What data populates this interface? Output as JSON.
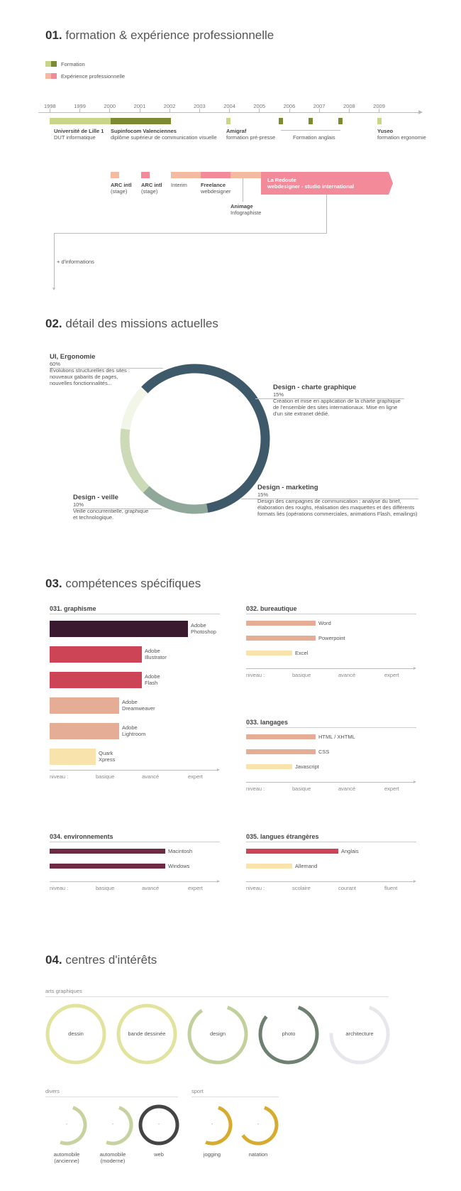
{
  "s1": {
    "num": "01.",
    "title": "formation & expérience professionnelle",
    "legend": [
      {
        "label": "Formation",
        "colors": [
          "#c9d68a",
          "#7d8a32"
        ]
      },
      {
        "label": "Expérience professionnelle",
        "colors": [
          "#f5bba0",
          "#f28a9a"
        ]
      }
    ],
    "years": [
      "1998",
      "1999",
      "2000",
      "2001",
      "2002",
      "2003",
      "2004",
      "2005",
      "2006",
      "2007",
      "2008",
      "2009"
    ],
    "edu": [
      {
        "title": "Université de Lille 1",
        "desc": "DUT informatique"
      },
      {
        "title": "Supinfocom Valenciennes",
        "desc": "diplôme supérieur de communication visuelle"
      },
      {
        "title": "Amigraf",
        "desc": "formation pré-presse"
      },
      {
        "title": "",
        "desc": "Formation anglais"
      },
      {
        "title": "Yuseo",
        "desc": "formation ergonomie"
      }
    ],
    "exp": [
      {
        "title": "ARC intl",
        "desc": "(stage)"
      },
      {
        "title": "ARC intl",
        "desc": "(stage)"
      },
      {
        "title": "",
        "desc": "Interim"
      },
      {
        "title": "Freelance",
        "desc": "webdesigner"
      },
      {
        "title": "Animage",
        "desc": "Infographiste"
      }
    ],
    "current": {
      "line1": "La Redoute",
      "line2": "webdesigner - studio international"
    },
    "more": "+ d'informations"
  },
  "s2": {
    "num": "02.",
    "title": "détail des missions actuelles",
    "chart_data": {
      "type": "pie",
      "labels": [
        "UI, Ergonomie",
        "Design - charte graphique",
        "Design - marketing",
        "Design - veille"
      ],
      "values": [
        60,
        15,
        15,
        10
      ],
      "colors": [
        "#3e5a6a",
        "#8fa89a",
        "#ccdab8",
        "#f2f6e8"
      ]
    },
    "items": [
      {
        "title": "UI, Ergonomie",
        "pct": "60%",
        "desc": [
          "Évolutions structurelles des sites :",
          "nouveaux gabarits de pages,",
          "nouvelles fonctionnalités..."
        ]
      },
      {
        "title": "Design - charte graphique",
        "pct": "15%",
        "desc": [
          "Création et mise en application de la charte graphique",
          "de l'ensemble des sites internationaux. Mise en ligne",
          "d'un site extranet dédié."
        ]
      },
      {
        "title": "Design - marketing",
        "pct": "15%",
        "desc": [
          "Design des campagnes de communication : analyse du brief,",
          "élaboration des roughs, réalisation des maquettes et des différents",
          "formats liés (opérations commerciales, animations Flash, emailings)"
        ]
      },
      {
        "title": "Design - veille",
        "pct": "10%",
        "desc": [
          "Veille concurrentielle, graphique",
          "et technologique."
        ]
      }
    ]
  },
  "s3": {
    "num": "03.",
    "title": "compétences spécifiques",
    "levels": [
      "niveau :",
      "basique",
      "avancé",
      "expert"
    ],
    "levels_lang": [
      "niveau :",
      "scolaire",
      "courant",
      "fluent"
    ],
    "graphisme": {
      "title": "031. graphisme",
      "skills": [
        {
          "label": [
            "Adobe",
            "Photoshop"
          ],
          "level": 3,
          "color": "#3a1a2e"
        },
        {
          "label": [
            "Adobe",
            "Illustrator"
          ],
          "level": 2,
          "color": "#cc4455"
        },
        {
          "label": [
            "Adobe",
            "Flash"
          ],
          "level": 2,
          "color": "#cc4455"
        },
        {
          "label": [
            "Adobe",
            "Dreamweaver"
          ],
          "level": 1.5,
          "color": "#e6ad96"
        },
        {
          "label": [
            "Adobe",
            "Lightroom"
          ],
          "level": 1.5,
          "color": "#e6ad96"
        },
        {
          "label": [
            "Quark",
            "Xpress"
          ],
          "level": 1,
          "color": "#f8e3ac"
        }
      ]
    },
    "bureautique": {
      "title": "032. bureautique",
      "skills": [
        {
          "label": "Word",
          "level": 1.5,
          "color": "#e6ad96"
        },
        {
          "label": "Powerpoint",
          "level": 1.5,
          "color": "#e6ad96"
        },
        {
          "label": "Excel",
          "level": 1,
          "color": "#f8e3ac"
        }
      ]
    },
    "langages": {
      "title": "033. langages",
      "skills": [
        {
          "label": "HTML / XHTML",
          "level": 1.5,
          "color": "#e6ad96"
        },
        {
          "label": "CSS",
          "level": 1.5,
          "color": "#e6ad96"
        },
        {
          "label": "Javascript",
          "level": 1,
          "color": "#f8e3ac"
        }
      ]
    },
    "environnements": {
      "title": "034. environnements",
      "skills": [
        {
          "label": "Macintosh",
          "level": 2.5,
          "color": "#6e2a44"
        },
        {
          "label": "Windows",
          "level": 2.5,
          "color": "#6e2a44"
        }
      ]
    },
    "langues": {
      "title": "035. langues étrangères",
      "skills": [
        {
          "label": "Anglais",
          "level": 2,
          "color": "#cc4455"
        },
        {
          "label": "Allemand",
          "level": 1,
          "color": "#f8e3ac"
        }
      ]
    }
  },
  "s4": {
    "num": "04.",
    "title": "centres d'intérêts",
    "arts_label": "arts graphiques",
    "arts": [
      {
        "label": "dessin",
        "level": 1.0,
        "color": "#e3e3a0"
      },
      {
        "label": "bande dessinée",
        "level": 1.0,
        "color": "#e3e3a0"
      },
      {
        "label": "design",
        "level": 0.85,
        "color": "#c2d09c"
      },
      {
        "label": "photo",
        "level": 0.8,
        "color": "#6e8070"
      },
      {
        "label": "architecture",
        "level": 0.7,
        "color": "#e8e8ec"
      }
    ],
    "divers_label": "divers",
    "divers": [
      {
        "label": [
          "automobile",
          "(ancienne)"
        ],
        "level": 0.5,
        "color": "#c6d3a0"
      },
      {
        "label": [
          "automobile",
          "(moderne)"
        ],
        "level": 0.5,
        "color": "#c6d3a0"
      },
      {
        "label": [
          "web",
          ""
        ],
        "level": 1.0,
        "color": "#444444"
      }
    ],
    "sport_label": "sport",
    "sport": [
      {
        "label": [
          "jogging",
          ""
        ],
        "level": 0.5,
        "color": "#d6ab2e"
      },
      {
        "label": [
          "natation",
          ""
        ],
        "level": 0.6,
        "color": "#d6ab2e"
      }
    ],
    "dash": "-"
  }
}
